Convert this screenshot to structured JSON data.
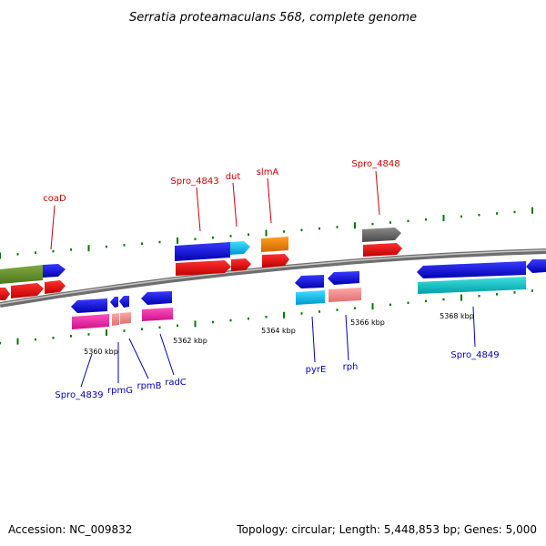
{
  "title": "Serratia proteamaculans 568, complete genome",
  "footer": {
    "accession": "Accession: NC_009832",
    "topology": "Topology: circular; Length: 5,448,853 bp; Genes: 5,000"
  },
  "colors": {
    "label_top": "#cc0000",
    "label_bottom": "#0000bb",
    "tick": "#007700",
    "backbone": "#808080"
  },
  "scale_labels": [
    "5360 kbp",
    "5362 kbp",
    "5364 kbp",
    "5366 kbp",
    "5368 kbp"
  ],
  "top_labels": [
    {
      "text": "coaD"
    },
    {
      "text": "Spro_4843"
    },
    {
      "text": "dut"
    },
    {
      "text": "slmA"
    },
    {
      "text": "Spro_4848"
    }
  ],
  "bottom_labels": [
    {
      "text": "Spro_4839"
    },
    {
      "text": "rpmG"
    },
    {
      "text": "rpmB"
    },
    {
      "text": "radC"
    },
    {
      "text": "pyrE"
    },
    {
      "text": "rph"
    },
    {
      "text": "Spro_4849"
    }
  ],
  "features": {
    "top_genes": [
      "olive",
      "blue",
      "blue",
      "cyan",
      "orange",
      "gray"
    ],
    "top_cds": [
      "red",
      "red",
      "red",
      "red",
      "red",
      "red",
      "red"
    ],
    "bottom_genes": [
      "blue",
      "blue",
      "blue",
      "blue",
      "blue",
      "blue",
      "blue",
      "blue"
    ],
    "bottom_cds": [
      "magenta",
      "pink",
      "magenta",
      "cyan",
      "pink",
      "teal"
    ]
  }
}
